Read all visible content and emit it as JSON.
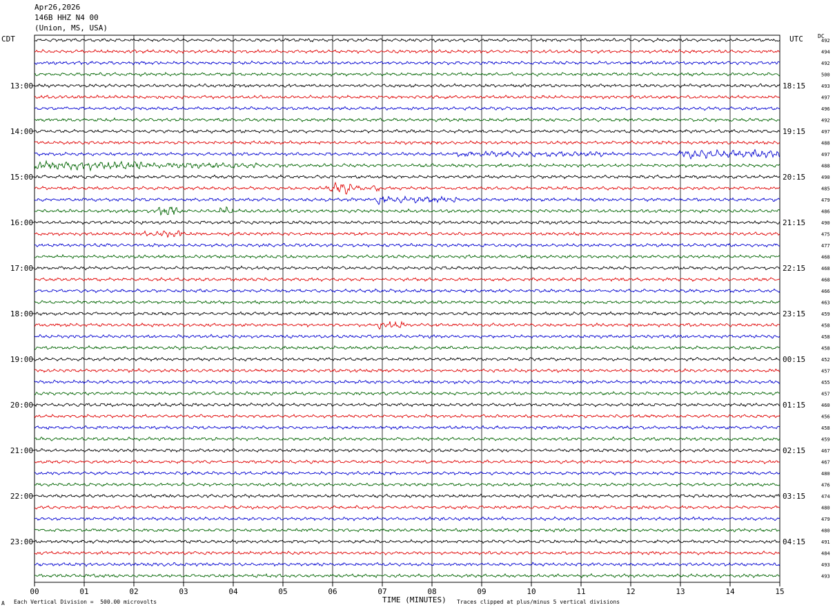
{
  "header": {
    "date": "Apr26,2026",
    "station": "146B HHZ N4 00",
    "location": "(Union, MS, USA)"
  },
  "left_axis_title": "CDT",
  "right_axis_title": "UTC",
  "dc_title": "DC",
  "footer": {
    "scale_note": "Each Vertical Division =  500.00 microvolts",
    "clip_note": "Traces clipped at plus/minus 5 vertical divisions",
    "mark": "A"
  },
  "colors": {
    "cycle": [
      "#000000",
      "#e00000",
      "#0000d0",
      "#006400"
    ],
    "grid": "#000000"
  },
  "chart_data": {
    "type": "line",
    "xlabel": "TIME (MINUTES)",
    "x_ticks": [
      "00",
      "01",
      "02",
      "03",
      "04",
      "05",
      "06",
      "07",
      "08",
      "09",
      "10",
      "11",
      "12",
      "13",
      "14",
      "15"
    ],
    "xlim": [
      0,
      15
    ],
    "left_labels": [
      {
        "row": 4,
        "text": "13:00"
      },
      {
        "row": 8,
        "text": "14:00"
      },
      {
        "row": 12,
        "text": "15:00"
      },
      {
        "row": 16,
        "text": "16:00"
      },
      {
        "row": 20,
        "text": "17:00"
      },
      {
        "row": 24,
        "text": "18:00"
      },
      {
        "row": 28,
        "text": "19:00"
      },
      {
        "row": 32,
        "text": "20:00"
      },
      {
        "row": 36,
        "text": "21:00"
      },
      {
        "row": 40,
        "text": "22:00"
      },
      {
        "row": 44,
        "text": "23:00"
      }
    ],
    "right_labels": [
      {
        "row": 4,
        "text": "18:15"
      },
      {
        "row": 8,
        "text": "19:15"
      },
      {
        "row": 12,
        "text": "20:15"
      },
      {
        "row": 16,
        "text": "21:15"
      },
      {
        "row": 20,
        "text": "22:15"
      },
      {
        "row": 24,
        "text": "23:15"
      },
      {
        "row": 28,
        "text": "00:15"
      },
      {
        "row": 32,
        "text": "01:15"
      },
      {
        "row": 36,
        "text": "02:15"
      },
      {
        "row": 40,
        "text": "03:15"
      },
      {
        "row": 44,
        "text": "04:15"
      }
    ],
    "dc_offsets": [
      "492",
      "494",
      "492",
      "500",
      "493",
      "497",
      "496",
      "492",
      "497",
      "488",
      "497",
      "488",
      "490",
      "485",
      "479",
      "486",
      "490",
      "475",
      "477",
      "468",
      "468",
      "468",
      "466",
      "463",
      "459",
      "458",
      "458",
      "458",
      "452",
      "457",
      "455",
      "457",
      "460",
      "456",
      "458",
      "459",
      "467",
      "467",
      "480",
      "476",
      "474",
      "480",
      "479",
      "480",
      "491",
      "484",
      "493",
      "493"
    ],
    "trace_count": 48,
    "bursts": [
      {
        "row": 11,
        "x0": 0.0,
        "x1": 2.2,
        "amp": 2.6
      },
      {
        "row": 11,
        "x0": 2.2,
        "x1": 4.5,
        "amp": 1.7
      },
      {
        "row": 10,
        "x0": 8.5,
        "x1": 11.5,
        "amp": 1.8
      },
      {
        "row": 10,
        "x0": 12.9,
        "x1": 15.0,
        "amp": 2.6
      },
      {
        "row": 13,
        "x0": 5.85,
        "x1": 6.55,
        "amp": 5.0
      },
      {
        "row": 13,
        "x0": 6.6,
        "x1": 6.95,
        "amp": 2.2
      },
      {
        "row": 14,
        "x0": 6.85,
        "x1": 7.05,
        "amp": 5.0
      },
      {
        "row": 14,
        "x0": 7.05,
        "x1": 8.5,
        "amp": 2.0
      },
      {
        "row": 15,
        "x0": 2.5,
        "x1": 2.9,
        "amp": 3.5
      },
      {
        "row": 15,
        "x0": 3.7,
        "x1": 4.0,
        "amp": 2.4
      },
      {
        "row": 17,
        "x0": 2.2,
        "x1": 3.0,
        "amp": 2.0
      },
      {
        "row": 25,
        "x0": 6.9,
        "x1": 7.5,
        "amp": 2.2
      }
    ]
  }
}
